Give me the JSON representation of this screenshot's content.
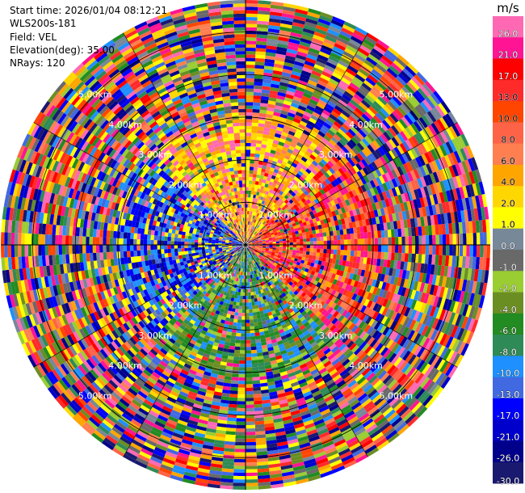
{
  "header": {
    "start_time": "Start time: 2026/01/04 08:12:21",
    "station": "WLS200s-181",
    "field": "Field: VEL",
    "elevation": "Elevation(deg): 35.00",
    "nrays": "NRays: 120"
  },
  "chart_data": {
    "type": "heatmap",
    "projection": "polar-ppi",
    "field": "VEL",
    "elevation_deg": 35.0,
    "n_rays": 120,
    "max_range_km": 5.75,
    "range_rings_km": [
      1.0,
      2.0,
      3.0,
      4.0,
      5.0
    ],
    "range_ring_labels": [
      "1.00km",
      "2.00km",
      "3.00km",
      "4.00km",
      "5.00km"
    ],
    "colorbar": {
      "unit": "m/s",
      "tick_labels": [
        "26.0",
        "21.0",
        "17.0",
        "13.0",
        "10.0",
        "8.0",
        "6.0",
        "4.0",
        "2.0",
        "1.0",
        "0.0",
        "-1.0",
        "-2.0",
        "-4.0",
        "-6.0",
        "-8.0",
        "-10.0",
        "-13.0",
        "-17.0",
        "-21.0",
        "-26.0",
        "-30.0"
      ],
      "bins": [
        {
          "min": 26,
          "max": 30,
          "color": "#ff69b4"
        },
        {
          "min": 21,
          "max": 26,
          "color": "#ff1493"
        },
        {
          "min": 17,
          "max": 21,
          "color": "#ff0000"
        },
        {
          "min": 13,
          "max": 17,
          "color": "#ff2a2a"
        },
        {
          "min": 10,
          "max": 13,
          "color": "#ff4500"
        },
        {
          "min": 8,
          "max": 10,
          "color": "#ff6347"
        },
        {
          "min": 6,
          "max": 8,
          "color": "#ff7f50"
        },
        {
          "min": 4,
          "max": 6,
          "color": "#ffa500"
        },
        {
          "min": 2,
          "max": 4,
          "color": "#ffd700"
        },
        {
          "min": 1,
          "max": 2,
          "color": "#ffff00"
        },
        {
          "min": 0,
          "max": 1,
          "color": "#778899"
        },
        {
          "min": -1,
          "max": 0,
          "color": "#696969"
        },
        {
          "min": -2,
          "max": -1,
          "color": "#9acd32"
        },
        {
          "min": -4,
          "max": -2,
          "color": "#6b8e23"
        },
        {
          "min": -6,
          "max": -4,
          "color": "#228b22"
        },
        {
          "min": -8,
          "max": -6,
          "color": "#2e8b57"
        },
        {
          "min": -10,
          "max": -8,
          "color": "#1e90ff"
        },
        {
          "min": -13,
          "max": -10,
          "color": "#4169e1"
        },
        {
          "min": -17,
          "max": -13,
          "color": "#0000ff"
        },
        {
          "min": -21,
          "max": -17,
          "color": "#0000cd"
        },
        {
          "min": -26,
          "max": -21,
          "color": "#00008b"
        },
        {
          "min": -30,
          "max": -26,
          "color": "#191970"
        }
      ]
    }
  }
}
